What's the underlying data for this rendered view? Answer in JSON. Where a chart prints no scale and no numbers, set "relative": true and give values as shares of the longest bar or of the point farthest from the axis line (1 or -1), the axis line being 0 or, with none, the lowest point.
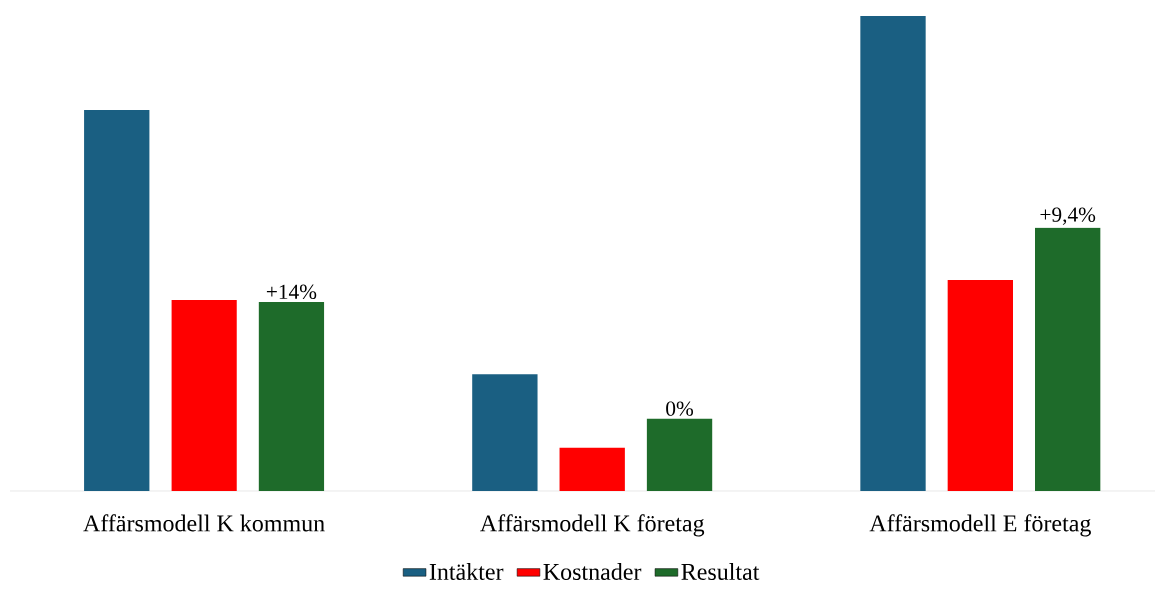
{
  "chart_data": {
    "type": "bar",
    "relative": true,
    "legend": "bottom",
    "categories": [
      "Affärsmodell K kommun",
      "Affärsmodell K företag",
      "Affärsmodell E företag"
    ],
    "series": [
      {
        "name": "Intäkter",
        "color": "#1a5f82",
        "values": [
          0.802,
          0.246,
          1.0
        ]
      },
      {
        "name": "Kostnader",
        "color": "#ff0000",
        "values": [
          0.402,
          0.091,
          0.444
        ]
      },
      {
        "name": "Resultat",
        "color": "#1e6b2a",
        "values": [
          0.398,
          0.152,
          0.554
        ]
      }
    ],
    "annotations": [
      "+14%",
      "0%",
      "+9,4%"
    ]
  }
}
